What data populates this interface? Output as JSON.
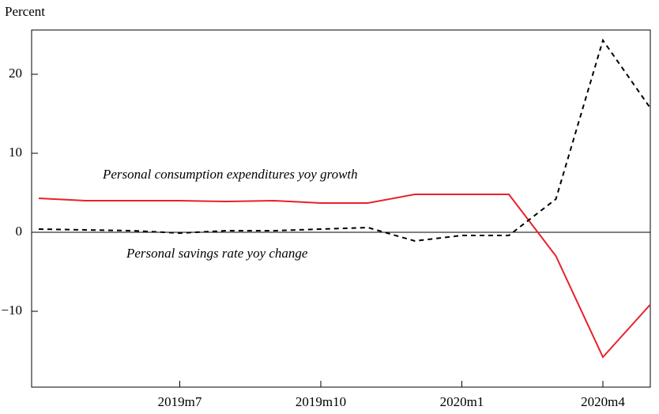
{
  "chart_data": {
    "type": "line",
    "y_label": "Percent",
    "categories": [
      null,
      null,
      null,
      "2019m7",
      null,
      null,
      "2019m10",
      null,
      null,
      "2020m1",
      null,
      null,
      "2020m4",
      null
    ],
    "series": [
      {
        "color": "#e8202a",
        "dash": "solid",
        "values": [
          4.3,
          4.0,
          4.0,
          4.0,
          3.9,
          4.0,
          3.7,
          3.7,
          4.8,
          4.8,
          4.8,
          -3.0,
          -15.8,
          -9.2
        ]
      },
      {
        "color": "#000000",
        "dash": "dashed",
        "values": [
          0.4,
          0.3,
          0.2,
          -0.1,
          0.2,
          0.2,
          0.4,
          0.6,
          -1.1,
          -0.4,
          -0.4,
          4.2,
          24.3,
          15.8
        ]
      }
    ],
    "annotations": [
      "Personal consumption expenditures yoy growth",
      "Personal savings rate yoy change"
    ],
    "ylim": [
      -19.6,
      25.6
    ],
    "yticks": [
      {
        "value": -10,
        "label": "−10"
      },
      0,
      10,
      20
    ],
    "zero_line": true
  }
}
